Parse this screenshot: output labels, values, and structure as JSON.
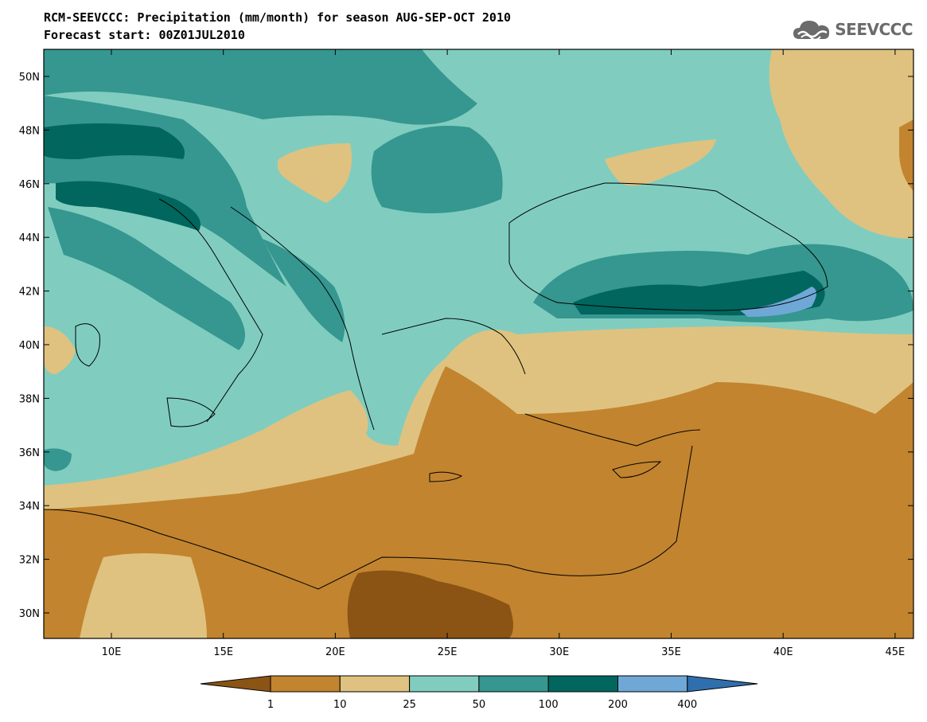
{
  "header": {
    "title_line1": "RCM-SEEVCCC: Precipitation (mm/month) for season AUG-SEP-OCT 2010",
    "title_line2": "Forecast start: 00Z01JUL2010"
  },
  "logo": {
    "text": "SEEVCCC",
    "icon": "cloud-logo-icon"
  },
  "map": {
    "lat_ticks": [
      "50N",
      "48N",
      "46N",
      "44N",
      "42N",
      "40N",
      "38N",
      "36N",
      "34N",
      "32N",
      "30N"
    ],
    "lon_ticks": [
      "10E",
      "15E",
      "20E",
      "25E",
      "30E",
      "35E",
      "40E",
      "45E"
    ]
  },
  "legend": {
    "thresholds": [
      "1",
      "10",
      "25",
      "50",
      "100",
      "200",
      "400"
    ],
    "colors": [
      "#8b5414",
      "#c2842f",
      "#dfc27f",
      "#80cdc0",
      "#35978f",
      "#01665e",
      "#6fa8d6",
      "#2f6fad"
    ]
  }
}
